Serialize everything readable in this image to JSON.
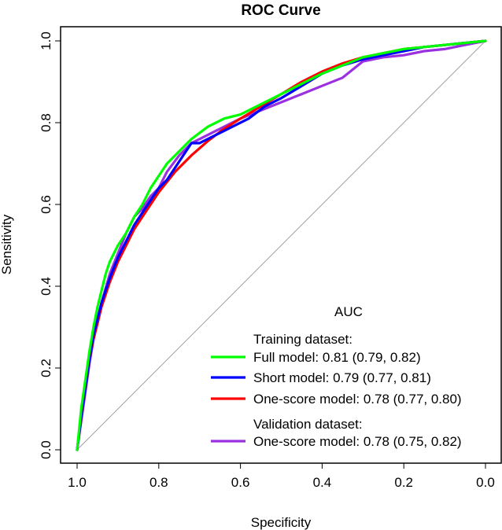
{
  "chart_data": {
    "type": "line",
    "title": "ROC Curve",
    "xlabel": "Specificity",
    "ylabel": "Sensitivity",
    "xlim": [
      1.0,
      0.0
    ],
    "ylim": [
      0.0,
      1.0
    ],
    "xticks": [
      "1.0",
      "0.8",
      "0.6",
      "0.4",
      "0.2",
      "0.0"
    ],
    "yticks": [
      "0.0",
      "0.2",
      "0.4",
      "0.6",
      "0.8",
      "1.0"
    ],
    "reference_line": true,
    "legend": {
      "title": "AUC",
      "placement": "bottom-right",
      "group1": "Training dataset:",
      "group2": "Validation dataset:"
    },
    "series": [
      {
        "name": "Full model: 0.81 (0.79, 0.82)",
        "color": "#00ff00",
        "x": [
          1.0,
          0.99,
          0.98,
          0.97,
          0.96,
          0.95,
          0.94,
          0.93,
          0.92,
          0.9,
          0.88,
          0.86,
          0.84,
          0.82,
          0.8,
          0.78,
          0.75,
          0.72,
          0.68,
          0.64,
          0.6,
          0.56,
          0.52,
          0.48,
          0.44,
          0.4,
          0.35,
          0.3,
          0.25,
          0.2,
          0.15,
          0.1,
          0.05,
          0.0
        ],
        "y": [
          0.0,
          0.1,
          0.17,
          0.24,
          0.3,
          0.35,
          0.39,
          0.43,
          0.46,
          0.5,
          0.53,
          0.57,
          0.6,
          0.64,
          0.67,
          0.7,
          0.73,
          0.76,
          0.79,
          0.81,
          0.82,
          0.84,
          0.86,
          0.88,
          0.9,
          0.92,
          0.94,
          0.96,
          0.97,
          0.98,
          0.985,
          0.99,
          0.995,
          1.0
        ]
      },
      {
        "name": "Short model: 0.79 (0.77, 0.81)",
        "color": "#0000ff",
        "x": [
          1.0,
          0.99,
          0.98,
          0.97,
          0.96,
          0.95,
          0.94,
          0.92,
          0.9,
          0.88,
          0.86,
          0.84,
          0.82,
          0.8,
          0.78,
          0.76,
          0.74,
          0.72,
          0.7,
          0.66,
          0.62,
          0.58,
          0.54,
          0.5,
          0.45,
          0.4,
          0.35,
          0.3,
          0.25,
          0.2,
          0.15,
          0.1,
          0.05,
          0.0
        ],
        "y": [
          0.0,
          0.08,
          0.15,
          0.22,
          0.28,
          0.32,
          0.36,
          0.42,
          0.47,
          0.51,
          0.55,
          0.58,
          0.61,
          0.64,
          0.66,
          0.69,
          0.72,
          0.75,
          0.75,
          0.77,
          0.79,
          0.81,
          0.84,
          0.86,
          0.89,
          0.92,
          0.94,
          0.955,
          0.965,
          0.975,
          0.985,
          0.99,
          0.995,
          1.0
        ]
      },
      {
        "name": "One-score model: 0.78 (0.77, 0.80)",
        "color": "#ff0000",
        "x": [
          1.0,
          0.99,
          0.98,
          0.97,
          0.96,
          0.95,
          0.94,
          0.92,
          0.9,
          0.88,
          0.86,
          0.84,
          0.82,
          0.8,
          0.78,
          0.76,
          0.72,
          0.68,
          0.64,
          0.6,
          0.55,
          0.5,
          0.45,
          0.4,
          0.35,
          0.3,
          0.25,
          0.2,
          0.15,
          0.1,
          0.05,
          0.0
        ],
        "y": [
          0.0,
          0.08,
          0.15,
          0.22,
          0.27,
          0.31,
          0.35,
          0.41,
          0.46,
          0.5,
          0.54,
          0.57,
          0.6,
          0.63,
          0.655,
          0.68,
          0.72,
          0.755,
          0.785,
          0.81,
          0.84,
          0.87,
          0.9,
          0.925,
          0.945,
          0.96,
          0.97,
          0.98,
          0.985,
          0.99,
          0.995,
          1.0
        ]
      },
      {
        "name": "One-score model: 0.78 (0.75, 0.82)",
        "color": "#9b30e0",
        "x": [
          1.0,
          0.99,
          0.98,
          0.97,
          0.96,
          0.95,
          0.94,
          0.92,
          0.9,
          0.88,
          0.86,
          0.84,
          0.82,
          0.8,
          0.78,
          0.75,
          0.72,
          0.68,
          0.64,
          0.6,
          0.55,
          0.5,
          0.45,
          0.4,
          0.35,
          0.3,
          0.25,
          0.2,
          0.15,
          0.1,
          0.05,
          0.0
        ],
        "y": [
          0.0,
          0.07,
          0.14,
          0.21,
          0.27,
          0.32,
          0.36,
          0.43,
          0.48,
          0.53,
          0.57,
          0.59,
          0.62,
          0.64,
          0.68,
          0.72,
          0.75,
          0.77,
          0.79,
          0.81,
          0.83,
          0.85,
          0.87,
          0.89,
          0.91,
          0.95,
          0.96,
          0.965,
          0.975,
          0.98,
          0.99,
          1.0
        ]
      }
    ]
  }
}
